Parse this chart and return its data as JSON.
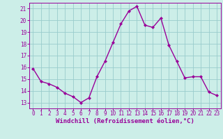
{
  "x": [
    0,
    1,
    2,
    3,
    4,
    5,
    6,
    7,
    8,
    9,
    10,
    11,
    12,
    13,
    14,
    15,
    16,
    17,
    18,
    19,
    20,
    21,
    22,
    23
  ],
  "y": [
    15.9,
    14.8,
    14.6,
    14.3,
    13.8,
    13.5,
    13.0,
    13.4,
    15.2,
    16.5,
    18.1,
    19.7,
    20.8,
    21.2,
    19.6,
    19.4,
    20.2,
    17.9,
    16.5,
    15.1,
    15.2,
    15.2,
    13.9,
    13.6
  ],
  "line_color": "#990099",
  "marker": "D",
  "marker_size": 2.0,
  "bg_color": "#cceee8",
  "grid_color": "#99cccc",
  "xlabel": "Windchill (Refroidissement éolien,°C)",
  "xlim": [
    -0.5,
    23.5
  ],
  "ylim": [
    12.5,
    21.5
  ],
  "yticks": [
    13,
    14,
    15,
    16,
    17,
    18,
    19,
    20,
    21
  ],
  "xticks": [
    0,
    1,
    2,
    3,
    4,
    5,
    6,
    7,
    8,
    9,
    10,
    11,
    12,
    13,
    14,
    15,
    16,
    17,
    18,
    19,
    20,
    21,
    22,
    23
  ],
  "tick_label_color": "#990099",
  "tick_label_fontsize": 5.5,
  "xlabel_fontsize": 6.5,
  "xlabel_color": "#990099",
  "spine_color": "#990099",
  "linewidth": 1.0
}
